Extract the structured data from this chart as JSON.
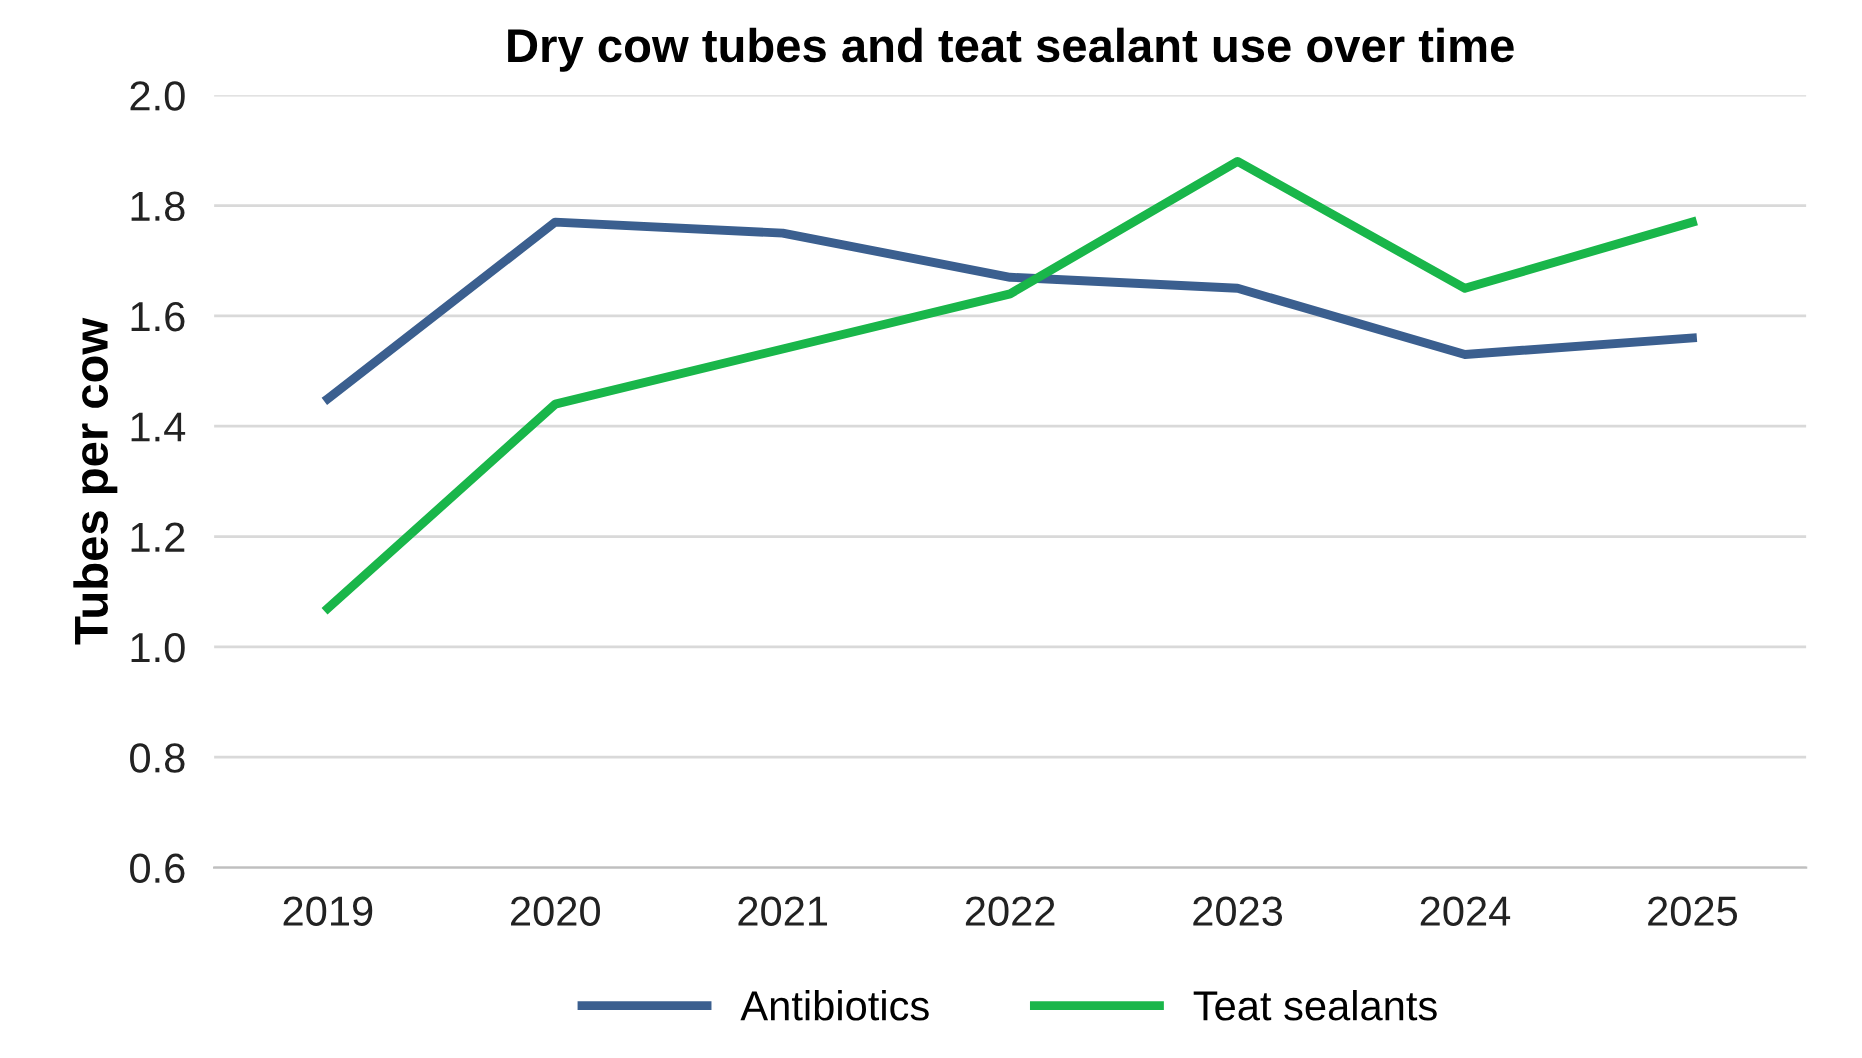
{
  "chart_data": {
    "type": "line",
    "title": "Dry cow tubes and teat sealant use over time",
    "ylabel": "Tubes per cow",
    "categories": [
      "2019",
      "2020",
      "2021",
      "2022",
      "2023",
      "2024",
      "2025"
    ],
    "series": [
      {
        "name": "Antibiotics",
        "color": "#3b5f8f",
        "values": [
          1.45,
          1.77,
          1.75,
          1.67,
          1.65,
          1.53,
          1.56
        ]
      },
      {
        "name": "Teat sealants",
        "color": "#19b64a",
        "values": [
          1.07,
          1.44,
          1.54,
          1.64,
          1.88,
          1.65,
          1.77
        ]
      }
    ],
    "ylim": [
      0.6,
      2.0
    ],
    "yticks": [
      0.6,
      0.8,
      {
        "value": 1.0,
        "label": "1.0"
      },
      1.2,
      1.4,
      1.6,
      1.8,
      {
        "value": 2.0,
        "label": "2.0"
      }
    ],
    "grid": "y",
    "legend": "bottom",
    "marker": "none",
    "line_style": "solid"
  }
}
